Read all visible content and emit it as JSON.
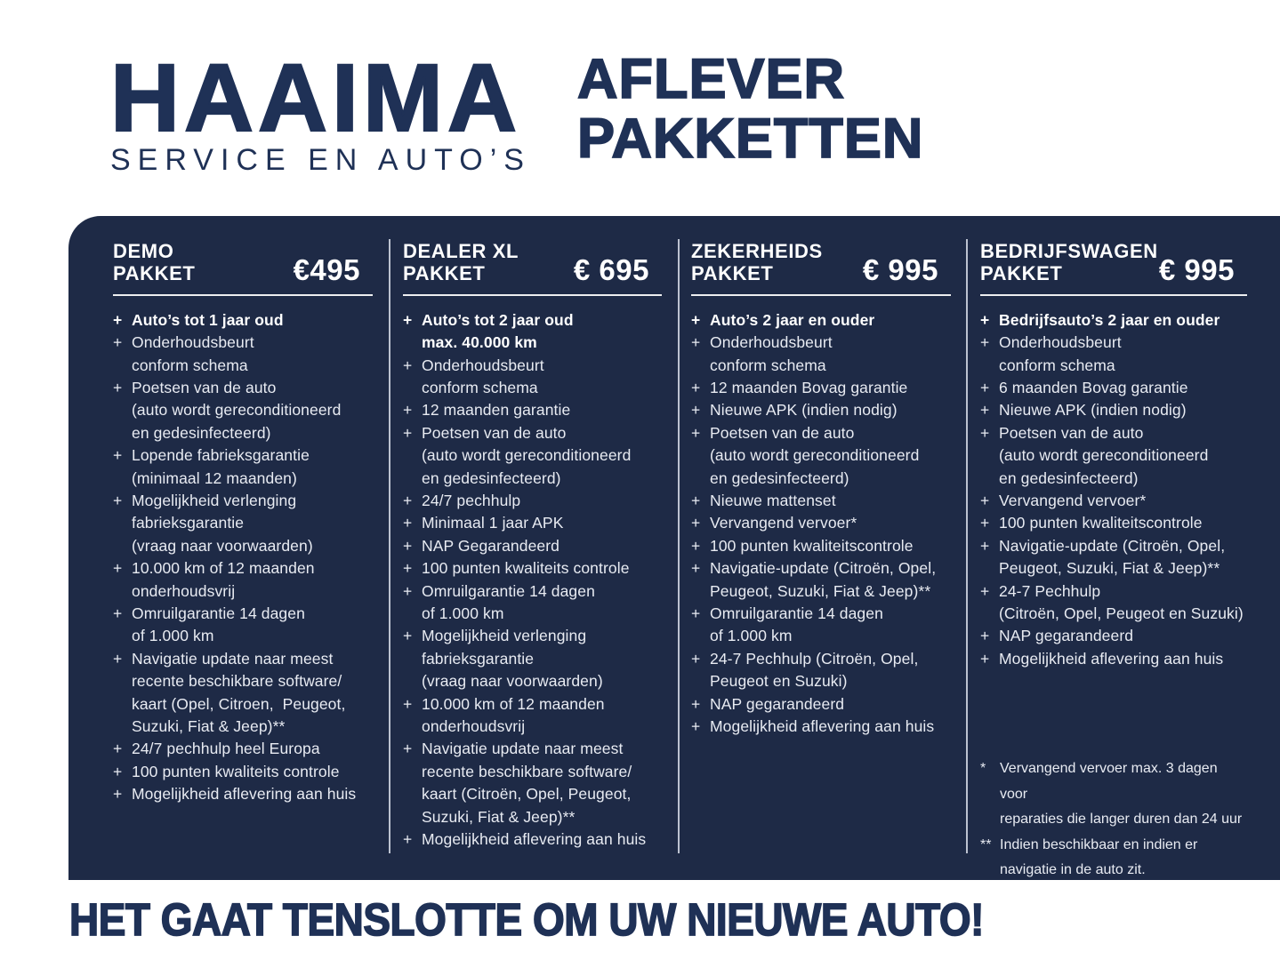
{
  "brand": {
    "logo_title": "HAAIMA",
    "logo_subtitle": "SERVICE EN AUTO’S"
  },
  "page_title": {
    "line1": "AFLEVER",
    "line2": "PAKKETTEN"
  },
  "markers": {
    "plus": "+"
  },
  "packages": [
    {
      "title_line1": "DEMO",
      "title_line2": "PAKKET",
      "price": "€495",
      "items": [
        {
          "bold": true,
          "lines": [
            "Auto’s tot 1 jaar oud"
          ]
        },
        {
          "bold": false,
          "lines": [
            "Onderhoudsbeurt",
            "conform schema"
          ]
        },
        {
          "bold": false,
          "lines": [
            "Poetsen van de auto",
            "(auto wordt gereconditioneerd",
            "en gedesinfecteerd)"
          ]
        },
        {
          "bold": false,
          "lines": [
            "Lopende fabrieksgarantie",
            "(minimaal 12 maanden)"
          ]
        },
        {
          "bold": false,
          "lines": [
            "Mogelijkheid verlenging",
            "fabrieksgarantie",
            "(vraag naar voorwaarden)"
          ]
        },
        {
          "bold": false,
          "lines": [
            "10.000 km of 12 maanden",
            "onderhoudsvrij"
          ]
        },
        {
          "bold": false,
          "lines": [
            "Omruilgarantie 14 dagen",
            "of 1.000 km"
          ]
        },
        {
          "bold": false,
          "lines": [
            "Navigatie update naar meest",
            "recente beschikbare software/",
            "kaart (Opel, Citroen,  Peugeot,",
            "Suzuki, Fiat & Jeep)**"
          ]
        },
        {
          "bold": false,
          "lines": [
            "24/7 pechhulp heel Europa"
          ]
        },
        {
          "bold": false,
          "lines": [
            "100 punten kwaliteits controle"
          ]
        },
        {
          "bold": false,
          "lines": [
            "Mogelijkheid aflevering aan huis"
          ]
        }
      ]
    },
    {
      "title_line1": "DEALER XL",
      "title_line2": "PAKKET",
      "price": "€ 695",
      "items": [
        {
          "bold": true,
          "lines": [
            "Auto’s tot 2 jaar oud",
            "max. 40.000 km"
          ]
        },
        {
          "bold": false,
          "lines": [
            "Onderhoudsbeurt",
            "conform schema"
          ]
        },
        {
          "bold": false,
          "lines": [
            "12 maanden garantie"
          ]
        },
        {
          "bold": false,
          "lines": [
            "Poetsen van de auto",
            "(auto wordt gereconditioneerd",
            "en gedesinfecteerd)"
          ]
        },
        {
          "bold": false,
          "lines": [
            "24/7 pechhulp"
          ]
        },
        {
          "bold": false,
          "lines": [
            "Minimaal 1 jaar APK"
          ]
        },
        {
          "bold": false,
          "lines": [
            "NAP Gegarandeerd"
          ]
        },
        {
          "bold": false,
          "lines": [
            "100 punten kwaliteits controle"
          ]
        },
        {
          "bold": false,
          "lines": [
            "Omruilgarantie 14 dagen",
            "of 1.000 km"
          ]
        },
        {
          "bold": false,
          "lines": [
            "Mogelijkheid verlenging",
            "fabrieksgarantie",
            "(vraag naar voorwaarden)"
          ]
        },
        {
          "bold": false,
          "lines": [
            "10.000 km of 12 maanden",
            "onderhoudsvrij"
          ]
        },
        {
          "bold": false,
          "lines": [
            "Navigatie update naar meest",
            "recente beschikbare software/",
            "kaart (Citroën, Opel, Peugeot,",
            "Suzuki, Fiat & Jeep)**"
          ]
        },
        {
          "bold": false,
          "lines": [
            "Mogelijkheid aflevering aan huis"
          ]
        }
      ]
    },
    {
      "title_line1": "ZEKERHEIDS",
      "title_line2": "PAKKET",
      "price": "€ 995",
      "items": [
        {
          "bold": true,
          "lines": [
            "Auto’s 2 jaar en ouder"
          ]
        },
        {
          "bold": false,
          "lines": [
            "Onderhoudsbeurt",
            "conform schema"
          ]
        },
        {
          "bold": false,
          "lines": [
            "12 maanden Bovag garantie"
          ]
        },
        {
          "bold": false,
          "lines": [
            "Nieuwe APK (indien nodig)"
          ]
        },
        {
          "bold": false,
          "lines": [
            "Poetsen van de auto",
            "(auto wordt gereconditioneerd",
            "en gedesinfecteerd)"
          ]
        },
        {
          "bold": false,
          "lines": [
            "Nieuwe mattenset"
          ]
        },
        {
          "bold": false,
          "lines": [
            "Vervangend vervoer*"
          ]
        },
        {
          "bold": false,
          "lines": [
            "100 punten kwaliteitscontrole"
          ]
        },
        {
          "bold": false,
          "lines": [
            "Navigatie-update (Citroën, Opel,",
            "Peugeot, Suzuki, Fiat & Jeep)**"
          ]
        },
        {
          "bold": false,
          "lines": [
            "Omruilgarantie 14 dagen",
            "of 1.000 km"
          ]
        },
        {
          "bold": false,
          "lines": [
            "24-7 Pechhulp (Citroën, Opel,",
            "Peugeot en Suzuki)"
          ]
        },
        {
          "bold": false,
          "lines": [
            "NAP gegarandeerd"
          ]
        },
        {
          "bold": false,
          "lines": [
            "Mogelijkheid aflevering aan huis"
          ]
        }
      ]
    },
    {
      "title_line1": "BEDRIJFSWAGEN",
      "title_line2": "PAKKET",
      "price": "€ 995",
      "items": [
        {
          "bold": true,
          "lines": [
            "Bedrijfsauto’s 2 jaar en ouder"
          ]
        },
        {
          "bold": false,
          "lines": [
            "Onderhoudsbeurt",
            "conform schema"
          ]
        },
        {
          "bold": false,
          "lines": [
            "6 maanden Bovag garantie"
          ]
        },
        {
          "bold": false,
          "lines": [
            "Nieuwe APK (indien nodig)"
          ]
        },
        {
          "bold": false,
          "lines": [
            "Poetsen van de auto",
            "(auto wordt gereconditioneerd",
            "en gedesinfecteerd)"
          ]
        },
        {
          "bold": false,
          "lines": [
            "Vervangend vervoer*"
          ]
        },
        {
          "bold": false,
          "lines": [
            "100 punten kwaliteitscontrole"
          ]
        },
        {
          "bold": false,
          "lines": [
            "Navigatie-update (Citroën, Opel,",
            "Peugeot, Suzuki, Fiat & Jeep)**"
          ]
        },
        {
          "bold": false,
          "lines": [
            "24-7 Pechhulp",
            "(Citroën, Opel, Peugeot en Suzuki)"
          ]
        },
        {
          "bold": false,
          "lines": [
            "NAP gegarandeerd"
          ]
        },
        {
          "bold": false,
          "lines": [
            "Mogelijkheid aflevering aan huis"
          ]
        }
      ]
    }
  ],
  "footnotes": [
    {
      "marker": "*",
      "lines": [
        "Vervangend vervoer max. 3 dagen voor",
        "reparaties die langer duren dan 24 uur"
      ]
    },
    {
      "marker": "**",
      "lines": [
        "Indien beschikbaar en indien er",
        "navigatie in de auto zit."
      ]
    }
  ],
  "tagline": "HET GAAT TENSLOTTE OM UW NIEUWE AUTO!",
  "colors": {
    "brand_navy": "#1f3156",
    "panel_navy": "#1e2a46",
    "panel_text": "#e8ebf2",
    "heading_white": "#ffffff"
  }
}
